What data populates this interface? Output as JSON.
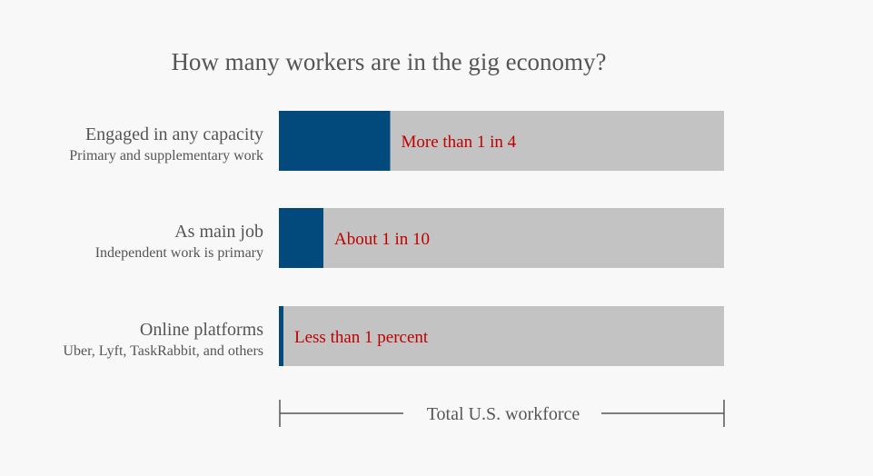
{
  "chart_data": {
    "type": "bar",
    "orientation": "horizontal",
    "stacked": true,
    "title": "How many workers are in the gig economy?",
    "categories": [
      {
        "label": "Engaged in any capacity",
        "sublabel": "Primary and supplementary work",
        "value": 25,
        "value_label": "More than 1 in 4"
      },
      {
        "label": "As main job",
        "sublabel": "Independent work is primary",
        "value": 10,
        "value_label": "About 1 in 10"
      },
      {
        "label": "Online platforms",
        "sublabel": "Uber, Lyft, TaskRabbit, and others",
        "value": 1,
        "value_label": "Less than 1 percent"
      }
    ],
    "total": 100,
    "xlim": [
      0,
      100
    ],
    "axis_caption": "Total U.S. workforce",
    "grid": false,
    "colors": {
      "bar": "#024a7c",
      "background_bar": "#c3c3c3",
      "value_label": "#c00000",
      "text": "#555555",
      "axis_line": "#555555"
    }
  }
}
